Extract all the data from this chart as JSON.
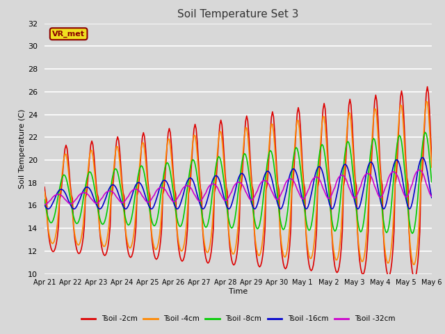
{
  "title": "Soil Temperature Set 3",
  "xlabel": "Time",
  "ylabel": "Soil Temperature (C)",
  "ylim": [
    10,
    32
  ],
  "yticks": [
    10,
    12,
    14,
    16,
    18,
    20,
    22,
    24,
    26,
    28,
    30,
    32
  ],
  "x_labels": [
    "Apr 21",
    "Apr 22",
    "Apr 23",
    "Apr 24",
    "Apr 25",
    "Apr 26",
    "Apr 27",
    "Apr 28",
    "Apr 29",
    "Apr 30",
    "May 1",
    "May 2",
    "May 3",
    "May 4",
    "May 5",
    "May 6"
  ],
  "plot_bg_color": "#d8d8d8",
  "fig_bg_color": "#d8d8d8",
  "grid_color": "#ffffff",
  "series": [
    {
      "label": "Tsoil -2cm",
      "color": "#dd0000",
      "lw": 1.2
    },
    {
      "label": "Tsoil -4cm",
      "color": "#ff8800",
      "lw": 1.2
    },
    {
      "label": "Tsoil -8cm",
      "color": "#00cc00",
      "lw": 1.2
    },
    {
      "label": "Tsoil -16cm",
      "color": "#0000cc",
      "lw": 1.2
    },
    {
      "label": "Tsoil -32cm",
      "color": "#cc00cc",
      "lw": 1.2
    }
  ],
  "annotation_text": "VR_met",
  "n_hours": 360
}
